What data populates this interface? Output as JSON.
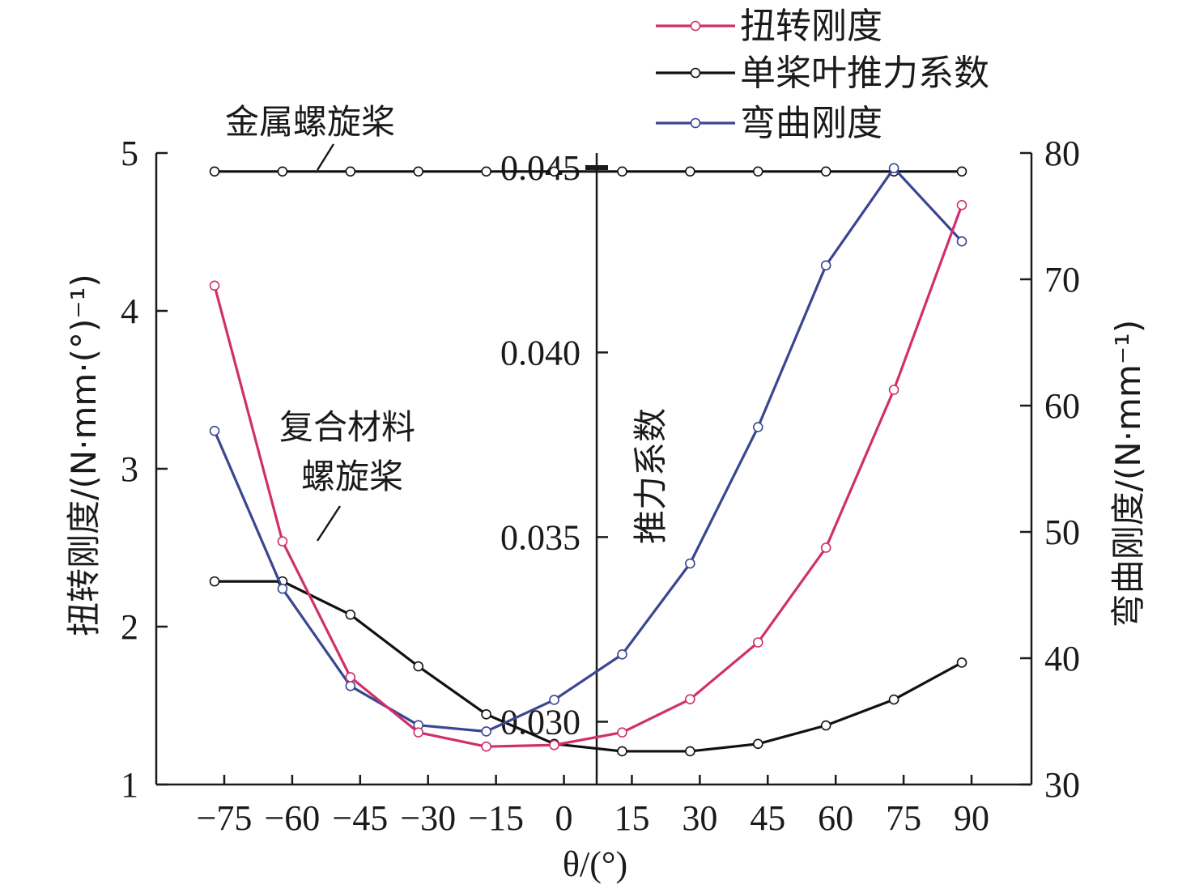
{
  "chart_data": {
    "type": "line",
    "x_label": "θ/(°)",
    "x_ticks": [
      "−75",
      "−60",
      "−45",
      "−30",
      "−15",
      "0",
      "15",
      "30",
      "45",
      "60",
      "75",
      "90"
    ],
    "y_left": {
      "label": "扭转刚度/(N·mm·(°)⁻¹)",
      "ticks": [
        "1",
        "2",
        "3",
        "4",
        "5"
      ],
      "range": [
        1,
        5
      ]
    },
    "y_mid": {
      "label": "推力系数",
      "ticks": [
        "0.030",
        "0.035",
        "0.040",
        "0.045"
      ],
      "range": [
        0.0283,
        0.0454
      ]
    },
    "y_right": {
      "label": "弯曲刚度/(N·mm⁻¹)",
      "ticks": [
        "30",
        "40",
        "50",
        "60",
        "70",
        "80"
      ],
      "range": [
        30,
        80
      ]
    },
    "legend": [
      {
        "label": "扭转刚度",
        "color": "#d0306a"
      },
      {
        "label": "单桨叶推力系数",
        "color": "#111111"
      },
      {
        "label": "弯曲刚度",
        "color": "#3a4690"
      }
    ],
    "annotations": {
      "metal": "金属螺旋桨",
      "composite_line1": "复合材料",
      "composite_line2": "螺旋桨"
    },
    "series": [
      {
        "name": "扭转刚度",
        "axis": "left",
        "color": "#d0306a",
        "x": [
          -75,
          -60,
          -45,
          -30,
          -15,
          0,
          15,
          30,
          45,
          60,
          75,
          90
        ],
        "y": [
          4.16,
          2.54,
          1.68,
          1.33,
          1.24,
          1.25,
          1.33,
          1.54,
          1.9,
          2.5,
          3.5,
          4.67
        ]
      },
      {
        "name": "弯曲刚度",
        "axis": "right",
        "color": "#3a4690",
        "x": [
          -75,
          -60,
          -45,
          -30,
          -15,
          0,
          15,
          30,
          45,
          60,
          75,
          90
        ],
        "y": [
          58,
          45.5,
          37.8,
          34.7,
          34.2,
          36.7,
          40.3,
          47.5,
          58.3,
          71.1,
          78.8,
          73
        ]
      },
      {
        "name": "单桨叶推力系数 (复合材料螺旋桨)",
        "axis": "mid",
        "color": "#111111",
        "x": [
          -75,
          -60,
          -45,
          -30,
          -15,
          0,
          15,
          30,
          45,
          60,
          75,
          90
        ],
        "y": [
          0.0338,
          0.0338,
          0.0329,
          0.0315,
          0.0302,
          0.0294,
          0.0292,
          0.0292,
          0.0294,
          0.0299,
          0.0306,
          0.0316
        ]
      },
      {
        "name": "单桨叶推力系数 (金属螺旋桨)",
        "axis": "mid",
        "color": "#111111",
        "x": [
          -75,
          -60,
          -45,
          -30,
          -15,
          0,
          15,
          30,
          45,
          60,
          75,
          90
        ],
        "y": [
          0.0449,
          0.0449,
          0.0449,
          0.0449,
          0.0449,
          0.0449,
          0.0449,
          0.0449,
          0.0449,
          0.0449,
          0.0449,
          0.0449
        ]
      }
    ]
  }
}
